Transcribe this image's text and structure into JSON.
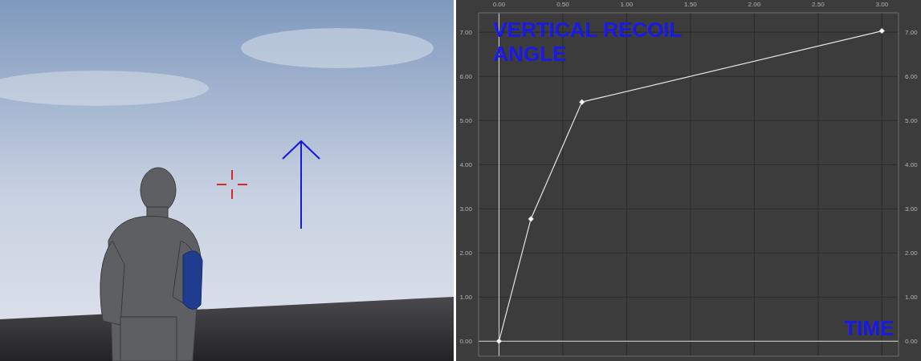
{
  "chart_data": {
    "type": "line",
    "ylabel": "VERTICAL RECOIL ANGLE",
    "xlabel": "TIME",
    "x": [
      0,
      0.25,
      0.65,
      3.0
    ],
    "values": [
      0,
      2.77,
      5.42,
      7.03
    ],
    "color": "#e6e6e6",
    "marker": "diamond",
    "xlim": [
      -0.16,
      3.13
    ],
    "ylim": [
      -0.34,
      7.44
    ],
    "xticks": [
      {
        "value": 0,
        "label": "0.00"
      },
      {
        "value": 0.5,
        "label": "0.50"
      },
      {
        "value": 1,
        "label": "1.00"
      },
      {
        "value": 1.5,
        "label": "1.50"
      },
      {
        "value": 2,
        "label": "2.00"
      },
      {
        "value": 2.5,
        "label": "2.50"
      },
      {
        "value": 3,
        "label": "3.00"
      }
    ],
    "yticks": [
      {
        "value": 0,
        "label": "0.00"
      },
      {
        "value": 1,
        "label": "1.00"
      },
      {
        "value": 2,
        "label": "2.00"
      },
      {
        "value": 3,
        "label": "3.00"
      },
      {
        "value": 4,
        "label": "4.00"
      },
      {
        "value": 5,
        "label": "5.00"
      },
      {
        "value": 6,
        "label": "6.00"
      },
      {
        "value": 7,
        "label": "7.00"
      }
    ],
    "grid": true
  }
}
